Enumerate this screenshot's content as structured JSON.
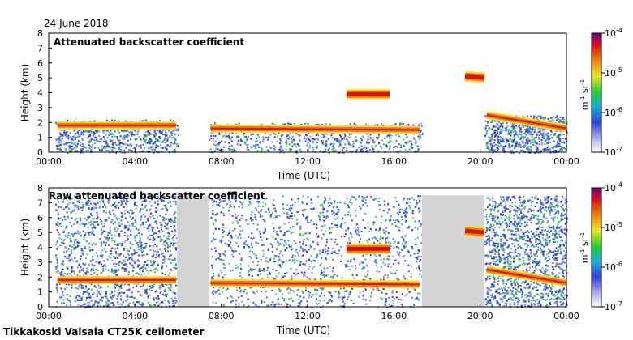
{
  "figure": {
    "date_label": "24 June 2018",
    "footer": "Tikkakoski Vaisala CT25K ceilometer"
  },
  "chart_data": [
    {
      "type": "heatmap",
      "title": "Attenuated backscatter coefficient",
      "xlabel": "Time (UTC)",
      "ylabel": "Height (km)",
      "xlim": [
        0,
        24
      ],
      "ylim": [
        0,
        8
      ],
      "x_ticks": [
        0,
        4,
        8,
        12,
        16,
        20,
        24
      ],
      "x_tick_labels": [
        "00:00",
        "04:00",
        "08:00",
        "12:00",
        "16:00",
        "20:00",
        "00:00"
      ],
      "y_ticks": [
        0,
        1,
        2,
        3,
        4,
        5,
        6,
        7,
        8
      ],
      "y_tick_labels": [
        "0",
        "1",
        "2",
        "3",
        "4",
        "5",
        "6",
        "7",
        "8"
      ],
      "colorbar": {
        "scale": "log",
        "range": [
          1e-07,
          0.0001
        ],
        "tick_labels": [
          "10",
          "10",
          "10",
          "10"
        ],
        "tick_exponents": [
          "-7",
          "-6",
          "-5",
          "-4"
        ],
        "unit_label": "m",
        "unit_exp1": "-1",
        "unit_sr": "sr",
        "unit_exp2": "-1"
      },
      "features": [
        {
          "name": "boundary-layer",
          "start": 0.4,
          "end": 5.9,
          "height_start": 1.8,
          "height_end": 1.8
        },
        {
          "name": "boundary-layer",
          "start": 7.5,
          "end": 17.2,
          "height_start": 1.6,
          "height_end": 1.5
        },
        {
          "name": "descending-layer",
          "start": 20.3,
          "end": 24.0,
          "height_start": 2.5,
          "height_end": 1.6
        },
        {
          "name": "mid-cloud",
          "start": 13.8,
          "end": 15.8,
          "height_start": 3.9,
          "height_end": 3.9
        },
        {
          "name": "mid-cloud",
          "start": 19.3,
          "end": 20.2,
          "height_start": 5.1,
          "height_end": 5.0
        }
      ]
    },
    {
      "type": "heatmap",
      "title": "Raw attenuated backscatter coefficient",
      "xlabel": "Time (UTC)",
      "ylabel": "Height (km)",
      "xlim": [
        0,
        24
      ],
      "ylim": [
        0,
        8
      ],
      "x_ticks": [
        0,
        4,
        8,
        12,
        16,
        20,
        24
      ],
      "x_tick_labels": [
        "00:00",
        "04:00",
        "08:00",
        "12:00",
        "16:00",
        "20:00",
        "00:00"
      ],
      "y_ticks": [
        0,
        1,
        2,
        3,
        4,
        5,
        6,
        7,
        8
      ],
      "y_tick_labels": [
        "0",
        "1",
        "2",
        "3",
        "4",
        "5",
        "6",
        "7",
        "8"
      ],
      "colorbar": {
        "scale": "log",
        "range": [
          1e-07,
          0.0001
        ],
        "tick_labels": [
          "10",
          "10",
          "10",
          "10"
        ],
        "tick_exponents": [
          "-7",
          "-6",
          "-5",
          "-4"
        ],
        "unit_label": "m",
        "unit_exp1": "-1",
        "unit_sr": "sr",
        "unit_exp2": "-1"
      },
      "features": [
        {
          "name": "boundary-layer",
          "start": 0.4,
          "end": 5.9,
          "height_start": 1.8,
          "height_end": 1.8
        },
        {
          "name": "boundary-layer",
          "start": 7.5,
          "end": 17.2,
          "height_start": 1.6,
          "height_end": 1.5
        },
        {
          "name": "descending-layer",
          "start": 20.3,
          "end": 24.0,
          "height_start": 2.5,
          "height_end": 1.6
        },
        {
          "name": "mid-cloud",
          "start": 13.8,
          "end": 15.8,
          "height_start": 3.9,
          "height_end": 3.9
        },
        {
          "name": "mid-cloud",
          "start": 19.3,
          "end": 20.2,
          "height_start": 5.1,
          "height_end": 5.0
        }
      ]
    }
  ]
}
